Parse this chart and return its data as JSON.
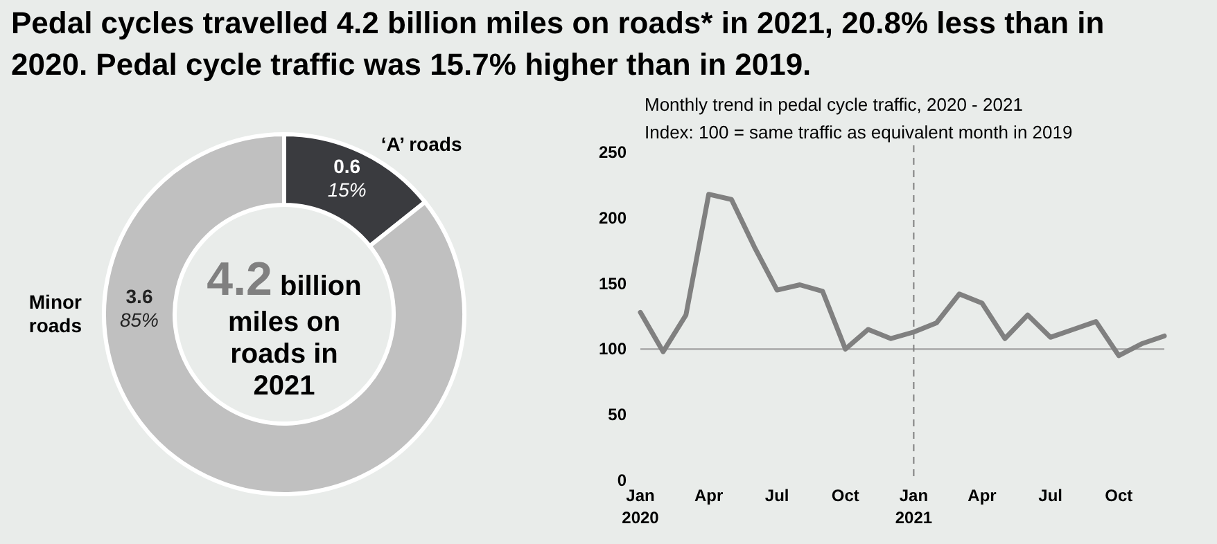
{
  "chart_data": [
    {
      "type": "donut",
      "title": "Pedal cycles travelled 4.2 billion miles on roads* in 2021, 20.8% less than in 2020. Pedal cycle traffic was 15.7% higher than in 2019.",
      "categories": [
        "‘A’ roads",
        "Minor roads"
      ],
      "values": [
        0.6,
        3.6
      ],
      "colors": [
        "#3a3b3f",
        "#c0c0c0"
      ],
      "value_labels": [
        "0.6\n15%",
        "3.6\n85%"
      ],
      "annotations": [
        "4.2 billion miles on roads in 2021"
      ]
    },
    {
      "type": "line",
      "title": "Monthly trend in pedal cycle traffic, 2020 - 2021",
      "subtitle": "Index: 100 = same traffic as equivalent month in 2019",
      "x": [
        "2020-01",
        "2020-02",
        "2020-03",
        "2020-04",
        "2020-05",
        "2020-06",
        "2020-07",
        "2020-08",
        "2020-09",
        "2020-10",
        "2020-11",
        "2020-12",
        "2021-01",
        "2021-02",
        "2021-03",
        "2021-04",
        "2021-05",
        "2021-06",
        "2021-07",
        "2021-08",
        "2021-09",
        "2021-10",
        "2021-11",
        "2021-12"
      ],
      "series": [
        {
          "color": "#808080",
          "values": [
            128,
            98,
            126,
            218,
            214,
            178,
            145,
            149,
            144,
            100,
            115,
            108,
            113,
            120,
            142,
            135,
            108,
            126,
            109,
            115,
            121,
            95,
            104,
            110
          ]
        }
      ],
      "xlim": [
        "2020-01",
        "2021-12"
      ],
      "xticks": [
        {
          "value": "2020-01",
          "label": "Jan 2020"
        },
        {
          "value": "2020-04",
          "label": "Apr"
        },
        {
          "value": "2020-07",
          "label": "Jul"
        },
        {
          "value": "2020-10",
          "label": "Oct"
        },
        {
          "value": "2021-01",
          "label": "Jan 2021"
        },
        {
          "value": "2021-04",
          "label": "Apr"
        },
        {
          "value": "2021-07",
          "label": "Jul"
        },
        {
          "value": "2021-10",
          "label": "Oct"
        }
      ],
      "ylim": [
        0,
        250
      ],
      "yticks": [
        0,
        50,
        100,
        150,
        200,
        250
      ],
      "grid": false,
      "marker": "none",
      "line_style": "solid",
      "ref_lines": [
        {
          "axis": "y",
          "value": 100,
          "color": "#a0a0a0",
          "line_style": "solid"
        },
        {
          "axis": "x",
          "value": "2021-01",
          "color": "#808080",
          "line_style": "dashed"
        }
      ]
    }
  ]
}
